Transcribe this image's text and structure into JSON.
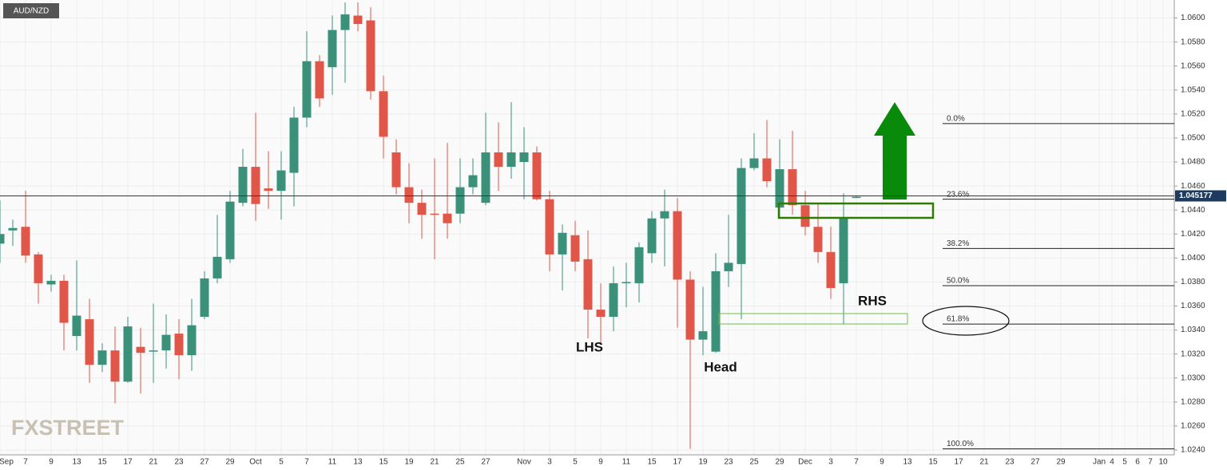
{
  "chart_data": {
    "type": "candlestick",
    "title": "AUD/NZD",
    "watermark": "FXSTREET",
    "annotations": [
      "LHS",
      "Head",
      "RHS"
    ],
    "up_color": "#3a9079",
    "down_color": "#e0574a",
    "grid": true,
    "ylim": [
      1.0236,
      1.0615
    ],
    "yticks": [
      {
        "value": 1.024,
        "label": "1.0240"
      },
      {
        "value": 1.026,
        "label": "1.0260"
      },
      {
        "value": 1.028,
        "label": "1.0280"
      },
      {
        "value": 1.03,
        "label": "1.0300"
      },
      {
        "value": 1.032,
        "label": "1.0320"
      },
      {
        "value": 1.034,
        "label": "1.0340"
      },
      {
        "value": 1.036,
        "label": "1.0360"
      },
      {
        "value": 1.038,
        "label": "1.0380"
      },
      {
        "value": 1.04,
        "label": "1.0400"
      },
      {
        "value": 1.042,
        "label": "1.0420"
      },
      {
        "value": 1.044,
        "label": "1.0440"
      },
      {
        "value": 1.046,
        "label": "1.0460"
      },
      {
        "value": 1.048,
        "label": "1.0480"
      },
      {
        "value": 1.05,
        "label": "1.0500"
      },
      {
        "value": 1.052,
        "label": "1.0520"
      },
      {
        "value": 1.054,
        "label": "1.0540"
      },
      {
        "value": 1.056,
        "label": "1.0560"
      },
      {
        "value": 1.058,
        "label": "1.0580"
      },
      {
        "value": 1.06,
        "label": "1.0600"
      }
    ],
    "last_price": {
      "value": 1.045177,
      "label": "1.045177"
    },
    "fib_levels": [
      {
        "value": 1.0512,
        "label": "0.0%"
      },
      {
        "value": 1.0449,
        "label": "23.6%"
      },
      {
        "value": 1.0408,
        "label": "38.2%"
      },
      {
        "value": 1.0377,
        "label": "50.0%"
      },
      {
        "value": 1.0345,
        "label": "61.8%"
      },
      {
        "value": 1.0241,
        "label": "100.0%"
      }
    ],
    "categories": [
      "Sep",
      null,
      "7",
      null,
      "9",
      null,
      "13",
      null,
      "15",
      null,
      "17",
      null,
      "21",
      null,
      "23",
      null,
      "27",
      null,
      "29",
      null,
      "Oct",
      null,
      "5",
      null,
      "7",
      null,
      "11",
      null,
      "13",
      null,
      "15",
      null,
      "19",
      null,
      "21",
      null,
      "25",
      null,
      "27",
      null,
      null,
      "Nov",
      null,
      "3",
      null,
      "5",
      null,
      "9",
      null,
      "11",
      null,
      "15",
      null,
      "17",
      null,
      "19",
      null,
      "23",
      null,
      "25",
      null,
      "29",
      null,
      "Dec",
      null,
      "3",
      null,
      "7",
      null,
      "9",
      null,
      "13",
      null,
      "15",
      null,
      "17",
      null,
      "21",
      null,
      "23",
      null,
      "27",
      null,
      "29",
      null,
      null,
      "Jan",
      "4",
      "5",
      "6",
      "7",
      "10"
    ],
    "open": [
      1.0412,
      1.0423,
      1.0426,
      1.0403,
      1.0378,
      1.0381,
      1.0335,
      1.0349,
      1.0311,
      1.0323,
      1.0297,
      1.0326,
      1.0322,
      1.0323,
      1.0337,
      1.0319,
      1.0351,
      1.0383,
      1.0399,
      1.0446,
      1.0476,
      1.0458,
      1.0456,
      1.0471,
      1.0517,
      1.0564,
      1.0559,
      1.059,
      1.0602,
      1.0598,
      1.0539,
      1.0488,
      1.0459,
      1.0446,
      1.0437,
      1.0437,
      1.0437,
      1.0459,
      1.0446,
      1.0488,
      1.0476,
      1.048,
      1.0488,
      1.0449,
      1.0403,
      1.0419,
      1.0399,
      1.0357,
      1.0351,
      1.0379,
      1.0379,
      1.0404,
      1.0433,
      1.0439,
      1.0382,
      1.0332,
      1.0322,
      1.0389,
      1.0395,
      1.0475,
      1.0483,
      1.0442,
      1.0474,
      1.0444,
      1.0426,
      1.0405,
      1.0379,
      1.045,
      null,
      null,
      null,
      null,
      null,
      null,
      null,
      null,
      null,
      null,
      null,
      null,
      null,
      null,
      null,
      null,
      null,
      null,
      null,
      null,
      null,
      null,
      null,
      null
    ],
    "high": [
      1.0448,
      1.0432,
      1.0456,
      1.0405,
      1.0386,
      1.0386,
      1.0398,
      1.0366,
      1.0329,
      1.0343,
      1.0351,
      1.0342,
      1.0362,
      1.0353,
      1.0349,
      1.0366,
      1.0389,
      1.0436,
      1.0456,
      1.0491,
      1.0521,
      1.0489,
      1.0489,
      1.0526,
      1.0589,
      1.0569,
      1.0602,
      1.0613,
      1.0613,
      1.0609,
      1.0552,
      1.0499,
      1.0479,
      1.0457,
      1.0483,
      1.0496,
      1.0483,
      1.0483,
      1.0521,
      1.0513,
      1.053,
      1.0509,
      1.0493,
      1.0456,
      1.0428,
      1.0431,
      1.0423,
      1.0379,
      1.0393,
      1.0396,
      1.0413,
      1.0439,
      1.0457,
      1.045,
      1.0389,
      1.0376,
      1.0404,
      1.0436,
      1.0483,
      1.0504,
      1.0515,
      1.0499,
      1.0506,
      1.0456,
      1.0446,
      1.0426,
      1.0454,
      1.0452,
      null,
      null,
      null,
      null,
      null,
      null,
      null,
      null,
      null,
      null,
      null,
      null,
      null,
      null,
      null,
      null,
      null,
      null,
      null,
      null,
      null,
      null,
      null,
      null
    ],
    "low": [
      1.0396,
      1.041,
      1.0396,
      1.0362,
      1.0372,
      1.0323,
      1.0323,
      1.0296,
      1.0305,
      1.0279,
      1.0296,
      1.0287,
      1.0296,
      1.0308,
      1.0299,
      1.0306,
      1.0349,
      1.0379,
      1.0396,
      1.0443,
      1.0431,
      1.0441,
      1.0432,
      1.0443,
      1.0509,
      1.0526,
      1.0536,
      1.0546,
      1.0589,
      1.0532,
      1.0483,
      1.0453,
      1.0429,
      1.0416,
      1.0399,
      1.0416,
      1.0429,
      1.0453,
      1.0444,
      1.0456,
      1.0466,
      1.0449,
      1.0448,
      1.0389,
      1.0373,
      1.0389,
      1.0333,
      1.0329,
      1.0339,
      1.0359,
      1.0363,
      1.0396,
      1.0393,
      1.0342,
      1.0241,
      1.0319,
      1.0321,
      1.0376,
      1.0349,
      1.0473,
      1.0459,
      1.0433,
      1.0436,
      1.0419,
      1.0396,
      1.0366,
      1.0345,
      1.045,
      null,
      null,
      null,
      null,
      null,
      null,
      null,
      null,
      null,
      null,
      null,
      null,
      null,
      null,
      null,
      null,
      null,
      null,
      null,
      null,
      null,
      null,
      null,
      null
    ],
    "close": [
      1.042,
      1.0425,
      1.0402,
      1.0379,
      1.0381,
      1.0346,
      1.0352,
      1.0311,
      1.0323,
      1.0297,
      1.0343,
      1.0321,
      1.0323,
      1.0336,
      1.0319,
      1.0344,
      1.0383,
      1.0401,
      1.0447,
      1.0476,
      1.0445,
      1.0456,
      1.0473,
      1.0517,
      1.0564,
      1.0533,
      1.059,
      1.0603,
      1.0595,
      1.0539,
      1.0501,
      1.0459,
      1.0446,
      1.0436,
      1.0436,
      1.0429,
      1.0459,
      1.0469,
      1.0488,
      1.0476,
      1.0488,
      1.0488,
      1.0449,
      1.0403,
      1.0421,
      1.0397,
      1.0357,
      1.0351,
      1.0379,
      1.038,
      1.0409,
      1.0433,
      1.0439,
      1.0382,
      1.0332,
      1.0339,
      1.0389,
      1.0396,
      1.0475,
      1.0483,
      1.0464,
      1.0474,
      1.0444,
      1.0426,
      1.0405,
      1.0375,
      1.0434,
      1.0451,
      null,
      null,
      null,
      null,
      null,
      null,
      null,
      null,
      null,
      null,
      null,
      null,
      null,
      null,
      null,
      null,
      null,
      null,
      null,
      null,
      null,
      null,
      null,
      null
    ]
  }
}
